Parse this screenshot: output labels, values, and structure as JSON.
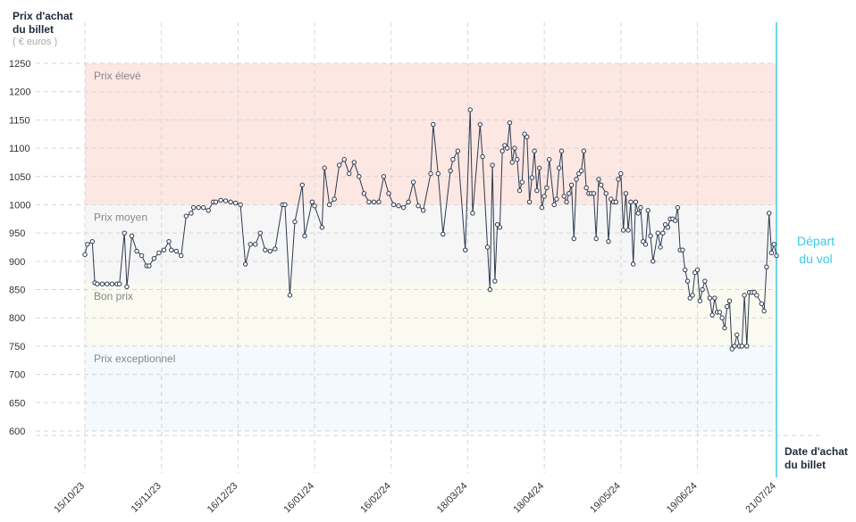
{
  "chart_data": {
    "type": "line",
    "y_title": [
      "Prix d'achat",
      "du billet"
    ],
    "y_unit": "( € euros )",
    "x_title": [
      "Date d'achat",
      "du billet"
    ],
    "departure_label": [
      "Départ",
      "du vol"
    ],
    "departure_color": "#3cc8e6",
    "color": "#2d3a4f",
    "grid": true,
    "bands": [
      {
        "label": "Prix élevé",
        "from": 1000,
        "to": 1250,
        "color": "#fde7e2"
      },
      {
        "label": "Prix moyen",
        "from": 860,
        "to": 1000,
        "color": "#f6f6f6"
      },
      {
        "label": "Bon prix",
        "from": 750,
        "to": 860,
        "color": "#fafaf1"
      },
      {
        "label": "Prix exceptionnel",
        "from": 600,
        "to": 750,
        "color": "#f3f9fc"
      }
    ],
    "xlim": [
      "2023-10-15",
      "2024-07-21"
    ],
    "xticks": [
      {
        "value": "2023-10-15",
        "label": "15/10/23"
      },
      {
        "value": "2023-11-15",
        "label": "15/11/23"
      },
      {
        "value": "2023-12-16",
        "label": "16/12/23"
      },
      {
        "value": "2024-01-16",
        "label": "16/01/24"
      },
      {
        "value": "2024-02-16",
        "label": "16/02/24"
      },
      {
        "value": "2024-03-18",
        "label": "18/03/24"
      },
      {
        "value": "2024-04-18",
        "label": "18/04/24"
      },
      {
        "value": "2024-05-19",
        "label": "19/05/24"
      },
      {
        "value": "2024-06-19",
        "label": "19/06/24"
      },
      {
        "value": "2024-07-21",
        "label": "21/07/24"
      }
    ],
    "ylim": [
      600,
      1250
    ],
    "yticks": [
      600,
      650,
      700,
      750,
      800,
      850,
      900,
      950,
      1000,
      1050,
      1100,
      1150,
      1200,
      1250
    ],
    "x": [
      "2023-10-15",
      "2023-10-16",
      "2023-10-18",
      "2023-10-19",
      "2023-10-20",
      "2023-10-22",
      "2023-10-24",
      "2023-10-26",
      "2023-10-28",
      "2023-10-29",
      "2023-10-31",
      "2023-11-01",
      "2023-11-03",
      "2023-11-05",
      "2023-11-07",
      "2023-11-09",
      "2023-11-10",
      "2023-11-12",
      "2023-11-14",
      "2023-11-16",
      "2023-11-18",
      "2023-11-19",
      "2023-11-21",
      "2023-11-23",
      "2023-11-25",
      "2023-11-27",
      "2023-11-28",
      "2023-11-30",
      "2023-12-02",
      "2023-12-04",
      "2023-12-06",
      "2023-12-07",
      "2023-12-09",
      "2023-12-11",
      "2023-12-13",
      "2023-12-15",
      "2023-12-17",
      "2023-12-19",
      "2023-12-21",
      "2023-12-23",
      "2023-12-25",
      "2023-12-27",
      "2023-12-29",
      "2023-12-31",
      "2024-01-03",
      "2024-01-04",
      "2024-01-06",
      "2024-01-08",
      "2024-01-11",
      "2024-01-12",
      "2024-01-15",
      "2024-01-16",
      "2024-01-19",
      "2024-01-20",
      "2024-01-22",
      "2024-01-24",
      "2024-01-26",
      "2024-01-28",
      "2024-01-30",
      "2024-02-01",
      "2024-02-03",
      "2024-02-05",
      "2024-02-07",
      "2024-02-09",
      "2024-02-11",
      "2024-02-13",
      "2024-02-15",
      "2024-02-17",
      "2024-02-19",
      "2024-02-21",
      "2024-02-23",
      "2024-02-25",
      "2024-02-27",
      "2024-02-29",
      "2024-03-03",
      "2024-03-04",
      "2024-03-06",
      "2024-03-08",
      "2024-03-11",
      "2024-03-12",
      "2024-03-14",
      "2024-03-17",
      "2024-03-19",
      "2024-03-20",
      "2024-03-23",
      "2024-03-24",
      "2024-03-26",
      "2024-03-27",
      "2024-03-28",
      "2024-03-29",
      "2024-03-30",
      "2024-03-31",
      "2024-04-01",
      "2024-04-02",
      "2024-04-03",
      "2024-04-04",
      "2024-04-05",
      "2024-04-06",
      "2024-04-07",
      "2024-04-08",
      "2024-04-09",
      "2024-04-10",
      "2024-04-11",
      "2024-04-12",
      "2024-04-13",
      "2024-04-14",
      "2024-04-15",
      "2024-04-16",
      "2024-04-17",
      "2024-04-18",
      "2024-04-19",
      "2024-04-20",
      "2024-04-22",
      "2024-04-23",
      "2024-04-24",
      "2024-04-25",
      "2024-04-26",
      "2024-04-27",
      "2024-04-28",
      "2024-04-29",
      "2024-04-30",
      "2024-05-01",
      "2024-05-02",
      "2024-05-03",
      "2024-05-04",
      "2024-05-05",
      "2024-05-06",
      "2024-05-07",
      "2024-05-08",
      "2024-05-09",
      "2024-05-10",
      "2024-05-11",
      "2024-05-13",
      "2024-05-14",
      "2024-05-15",
      "2024-05-16",
      "2024-05-17",
      "2024-05-18",
      "2024-05-19",
      "2024-05-20",
      "2024-05-21",
      "2024-05-22",
      "2024-05-23",
      "2024-05-24",
      "2024-05-25",
      "2024-05-26",
      "2024-05-27",
      "2024-05-28",
      "2024-05-29",
      "2024-05-30",
      "2024-05-31",
      "2024-06-01",
      "2024-06-03",
      "2024-06-04",
      "2024-06-05",
      "2024-06-06",
      "2024-06-07",
      "2024-06-08",
      "2024-06-09",
      "2024-06-10",
      "2024-06-11",
      "2024-06-12",
      "2024-06-13",
      "2024-06-14",
      "2024-06-15",
      "2024-06-16",
      "2024-06-17",
      "2024-06-18",
      "2024-06-19",
      "2024-06-20",
      "2024-06-21",
      "2024-06-22",
      "2024-06-24",
      "2024-06-25",
      "2024-06-26",
      "2024-06-27",
      "2024-06-28",
      "2024-06-29",
      "2024-06-30",
      "2024-07-01",
      "2024-07-02",
      "2024-07-03",
      "2024-07-04",
      "2024-07-05",
      "2024-07-06",
      "2024-07-07",
      "2024-07-08",
      "2024-07-09",
      "2024-07-10",
      "2024-07-11",
      "2024-07-12",
      "2024-07-13",
      "2024-07-15",
      "2024-07-16",
      "2024-07-17",
      "2024-07-18",
      "2024-07-19",
      "2024-07-20",
      "2024-07-21"
    ],
    "values": [
      912,
      930,
      935,
      862,
      860,
      860,
      860,
      860,
      860,
      860,
      950,
      855,
      945,
      918,
      910,
      892,
      892,
      905,
      915,
      920,
      935,
      920,
      918,
      910,
      980,
      985,
      995,
      995,
      995,
      990,
      1005,
      1005,
      1008,
      1007,
      1005,
      1003,
      1000,
      895,
      930,
      930,
      950,
      920,
      918,
      922,
      1000,
      1000,
      840,
      970,
      1035,
      945,
      1005,
      998,
      960,
      1065,
      1000,
      1010,
      1070,
      1080,
      1055,
      1075,
      1050,
      1020,
      1005,
      1005,
      1005,
      1050,
      1020,
      1000,
      998,
      995,
      1005,
      1040,
      998,
      990,
      1055,
      1142,
      1055,
      948,
      1060,
      1080,
      1095,
      920,
      1168,
      985,
      1142,
      1085,
      925,
      850,
      1070,
      865,
      965,
      960,
      1095,
      1105,
      1100,
      1145,
      1075,
      1100,
      1080,
      1025,
      1040,
      1125,
      1120,
      1005,
      1048,
      1095,
      1025,
      1065,
      995,
      1015,
      1030,
      1080,
      1000,
      1010,
      1065,
      1095,
      1015,
      1005,
      1020,
      1035,
      940,
      1045,
      1055,
      1060,
      1095,
      1030,
      1020,
      1020,
      1020,
      940,
      1045,
      1035,
      1020,
      935,
      1010,
      1005,
      1005,
      1045,
      1055,
      955,
      1020,
      955,
      1005,
      895,
      1005,
      985,
      995,
      935,
      930,
      990,
      945,
      900,
      950,
      925,
      950,
      965,
      960,
      975,
      975,
      972,
      995,
      920,
      920,
      885,
      865,
      835,
      840,
      880,
      885,
      830,
      850,
      865,
      835,
      805,
      835,
      810,
      810,
      800,
      782,
      820,
      830,
      745,
      750,
      770,
      750,
      750,
      840,
      750,
      845,
      845,
      845,
      840,
      825,
      812,
      890,
      985,
      915,
      930,
      910
    ]
  }
}
